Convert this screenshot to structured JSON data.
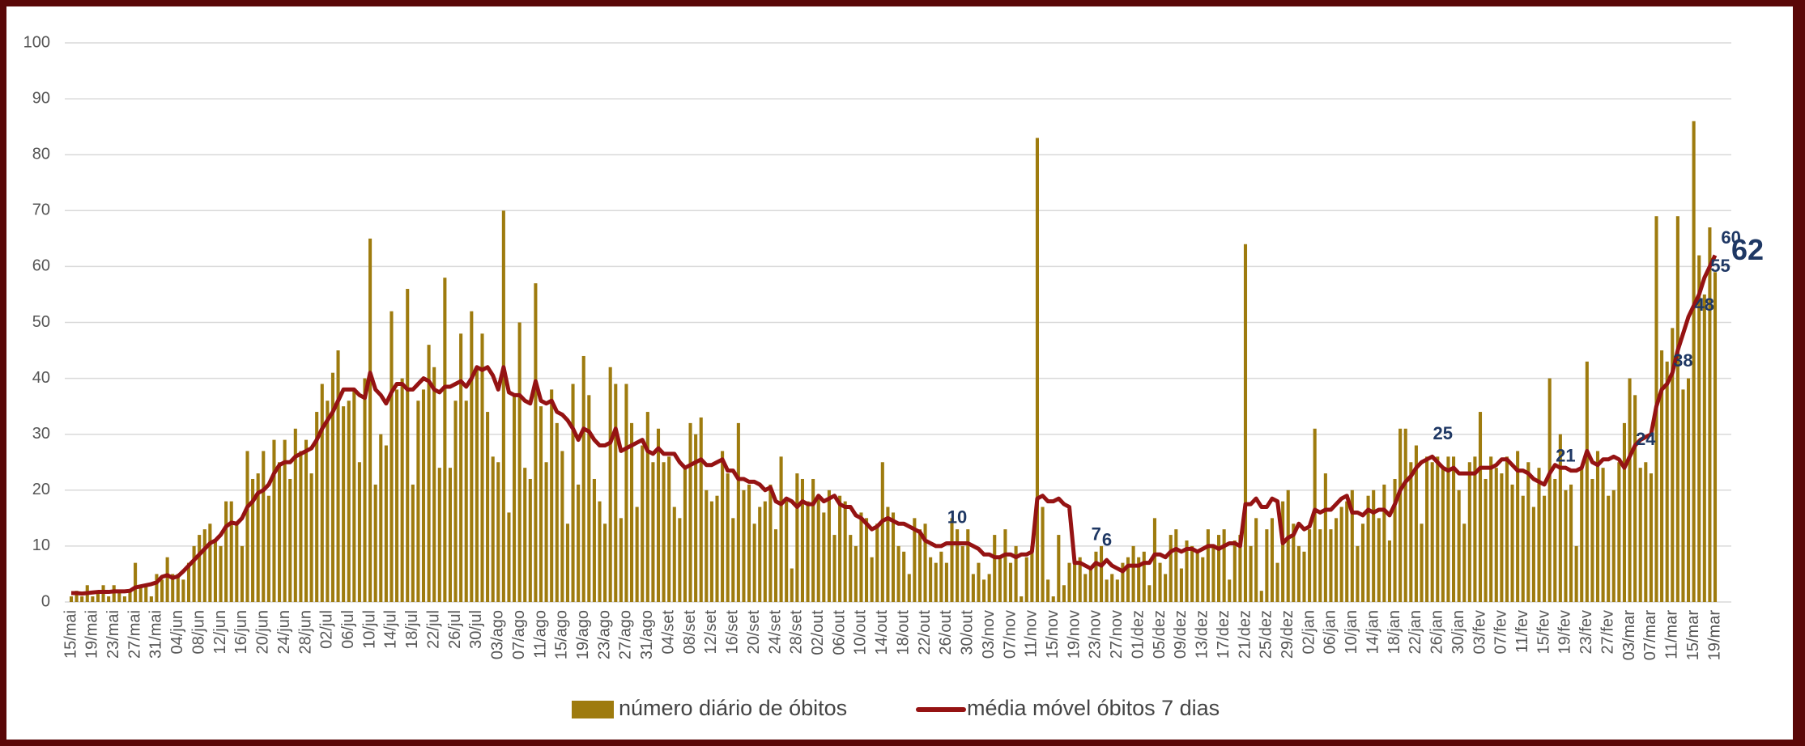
{
  "chart_data": {
    "type": "bar-line",
    "categories": [
      "15/mai",
      null,
      null,
      null,
      "19/mai",
      null,
      null,
      null,
      "23/mai",
      null,
      null,
      null,
      "27/mai",
      null,
      null,
      null,
      "31/mai",
      null,
      null,
      null,
      "04/jun",
      null,
      null,
      null,
      "08/jun",
      null,
      null,
      null,
      "12/jun",
      null,
      null,
      null,
      "16/jun",
      null,
      null,
      null,
      "20/jun",
      null,
      null,
      null,
      "24/jun",
      null,
      null,
      null,
      "28/jun",
      null,
      null,
      null,
      "02/jul",
      null,
      null,
      null,
      "06/jul",
      null,
      null,
      null,
      "10/jul",
      null,
      null,
      null,
      "14/jul",
      null,
      null,
      null,
      "18/jul",
      null,
      null,
      null,
      "22/jul",
      null,
      null,
      null,
      "26/jul",
      null,
      null,
      null,
      "30/jul",
      null,
      null,
      null,
      "03/ago",
      null,
      null,
      null,
      "07/ago",
      null,
      null,
      null,
      "11/ago",
      null,
      null,
      null,
      "15/ago",
      null,
      null,
      null,
      "19/ago",
      null,
      null,
      null,
      "23/ago",
      null,
      null,
      null,
      "27/ago",
      null,
      null,
      null,
      "31/ago",
      null,
      null,
      null,
      "04/set",
      null,
      null,
      null,
      "08/set",
      null,
      null,
      null,
      "12/set",
      null,
      null,
      null,
      "16/set",
      null,
      null,
      null,
      "20/set",
      null,
      null,
      null,
      "24/set",
      null,
      null,
      null,
      "28/set",
      null,
      null,
      null,
      "02/out",
      null,
      null,
      null,
      "06/out",
      null,
      null,
      null,
      "10/out",
      null,
      null,
      null,
      "14/out",
      null,
      null,
      null,
      "18/out",
      null,
      null,
      null,
      "22/out",
      null,
      null,
      null,
      "26/out",
      null,
      null,
      null,
      "30/out",
      null,
      null,
      null,
      "03/nov",
      null,
      null,
      null,
      "07/nov",
      null,
      null,
      null,
      "11/nov",
      null,
      null,
      null,
      "15/nov",
      null,
      null,
      null,
      "19/nov",
      null,
      null,
      null,
      "23/nov",
      null,
      null,
      null,
      "27/nov",
      null,
      null,
      null,
      "01/dez",
      null,
      null,
      null,
      "05/dez",
      null,
      null,
      null,
      "09/dez",
      null,
      null,
      null,
      "13/dez",
      null,
      null,
      null,
      "17/dez",
      null,
      null,
      null,
      "21/dez",
      null,
      null,
      null,
      "25/dez",
      null,
      null,
      null,
      "29/dez",
      null,
      null,
      null,
      "02/jan",
      null,
      null,
      null,
      "06/jan",
      null,
      null,
      null,
      "10/jan",
      null,
      null,
      null,
      "14/jan",
      null,
      null,
      null,
      "18/jan",
      null,
      null,
      null,
      "22/jan",
      null,
      null,
      null,
      "26/jan",
      null,
      null,
      null,
      "30/jan",
      null,
      null,
      null,
      "03/fev",
      null,
      null,
      null,
      "07/fev",
      null,
      null,
      null,
      "11/fev",
      null,
      null,
      null,
      "15/fev",
      null,
      null,
      null,
      "19/fev",
      null,
      null,
      null,
      "23/fev",
      null,
      null,
      null,
      "27/fev",
      null,
      null,
      null,
      "03/mar",
      null,
      null,
      null,
      "07/mar",
      null,
      null,
      null,
      "11/mar",
      null,
      null,
      null,
      "15/mar",
      null,
      null,
      null,
      "19/mar"
    ],
    "series": [
      {
        "name": "número diário de óbitos",
        "type": "bar",
        "color": "#9e7b0e",
        "values": [
          1,
          2,
          1,
          3,
          1,
          2,
          3,
          1,
          3,
          2,
          1,
          2,
          7,
          3,
          3,
          1,
          5,
          4,
          8,
          5,
          5,
          4,
          7,
          10,
          12,
          13,
          14,
          11,
          10,
          18,
          18,
          14,
          10,
          27,
          22,
          23,
          27,
          19,
          29,
          25,
          29,
          22,
          31,
          27,
          29,
          23,
          34,
          39,
          36,
          41,
          45,
          35,
          36,
          38,
          25,
          40,
          65,
          21,
          30,
          28,
          52,
          38,
          40,
          56,
          21,
          36,
          38,
          46,
          42,
          24,
          58,
          24,
          36,
          48,
          36,
          52,
          42,
          48,
          34,
          26,
          25,
          70,
          16,
          37,
          50,
          24,
          22,
          57,
          35,
          25,
          38,
          32,
          27,
          14,
          39,
          21,
          44,
          37,
          22,
          18,
          14,
          42,
          39,
          15,
          39,
          32,
          17,
          28,
          34,
          25,
          31,
          25,
          26,
          17,
          15,
          24,
          32,
          30,
          33,
          20,
          18,
          19,
          27,
          23,
          15,
          32,
          20,
          21,
          14,
          17,
          18,
          21,
          13,
          26,
          18,
          6,
          23,
          22,
          18,
          22,
          19,
          16,
          20,
          12,
          19,
          18,
          12,
          10,
          16,
          15,
          8,
          14,
          25,
          17,
          16,
          10,
          9,
          5,
          15,
          13,
          14,
          8,
          7,
          9,
          7,
          15,
          13,
          10,
          13,
          5,
          7,
          4,
          5,
          12,
          8,
          13,
          7,
          10,
          1,
          8,
          10,
          83,
          17,
          4,
          1,
          12,
          3,
          7,
          7,
          8,
          5,
          6,
          9,
          10,
          4,
          5,
          4,
          7,
          8,
          10,
          8,
          9,
          3,
          15,
          7,
          5,
          12,
          13,
          6,
          11,
          10,
          9,
          8,
          13,
          10,
          12,
          13,
          4,
          11,
          12,
          64,
          10,
          15,
          2,
          13,
          15,
          7,
          18,
          20,
          14,
          10,
          9,
          13,
          31,
          13,
          23,
          13,
          15,
          17,
          18,
          20,
          10,
          14,
          19,
          20,
          15,
          21,
          11,
          22,
          31,
          31,
          25,
          28,
          14,
          26,
          25,
          26,
          24,
          26,
          26,
          20,
          14,
          25,
          26,
          34,
          22,
          26,
          24,
          23,
          26,
          21,
          27,
          19,
          25,
          17,
          24,
          19,
          40,
          22,
          30,
          20,
          21,
          10,
          24,
          43,
          22,
          27,
          24,
          19,
          20,
          25,
          32,
          40,
          37,
          24,
          25,
          23,
          69,
          45,
          43,
          49,
          69,
          38,
          40,
          86,
          62,
          55,
          67,
          59
        ]
      },
      {
        "name": "média móvel óbitos 7 dias",
        "type": "line",
        "color": "#951313",
        "values": [
          1.6,
          1.6,
          1.5,
          1.6,
          1.7,
          1.8,
          1.8,
          1.8,
          1.9,
          1.9,
          1.9,
          2.0,
          2.6,
          2.8,
          3.0,
          3.2,
          3.5,
          4.5,
          4.8,
          4.3,
          4.6,
          5.5,
          6.5,
          7.5,
          8.5,
          9.5,
          10.5,
          11,
          12,
          13.5,
          14.2,
          14,
          15,
          17,
          18,
          19.5,
          20,
          21,
          23,
          24.5,
          25,
          25,
          26,
          26.5,
          27,
          27.5,
          29,
          31,
          32.5,
          34,
          36,
          38,
          38,
          38,
          37,
          36.5,
          41,
          38,
          37,
          35.5,
          37.5,
          39,
          39,
          38,
          38,
          39,
          40,
          39.5,
          38,
          37.5,
          38.5,
          38.5,
          39,
          39.5,
          38.5,
          40,
          42,
          41.5,
          42,
          40.5,
          38,
          42,
          37.5,
          37,
          37,
          36,
          35.5,
          39.5,
          36,
          35.5,
          36,
          34,
          33.5,
          32.5,
          31,
          29,
          31,
          30.5,
          29,
          28,
          28,
          28.5,
          31,
          27,
          27.5,
          28,
          28.5,
          29,
          27,
          26.5,
          27.5,
          26.5,
          26.5,
          26.5,
          25,
          24,
          24.5,
          25,
          25.5,
          24.5,
          24.5,
          25,
          25.5,
          23.5,
          23.5,
          22,
          22,
          21.5,
          21.5,
          21,
          20,
          20.5,
          18,
          17.5,
          18.5,
          18,
          17,
          18,
          17.5,
          17.5,
          19,
          18,
          18.5,
          19,
          17.5,
          17,
          17,
          15.5,
          15,
          14,
          13,
          13.5,
          14.5,
          15,
          14.5,
          14,
          14,
          13.5,
          13,
          12.5,
          11,
          10.5,
          10,
          10,
          10.5,
          10.5,
          10.5,
          10.5,
          10.5,
          10,
          9.5,
          8.5,
          8.5,
          8,
          8,
          8.5,
          8.5,
          8,
          8.5,
          8.5,
          9,
          18.5,
          19,
          18,
          18,
          18.5,
          17.5,
          17,
          7,
          7,
          6.5,
          6,
          7,
          6.5,
          7.5,
          6.5,
          6,
          5.5,
          6.5,
          6.5,
          6.5,
          7,
          7,
          8.5,
          8.5,
          8,
          9,
          9.5,
          9,
          9.5,
          9.5,
          9,
          9.5,
          10,
          10,
          9.5,
          10,
          10.5,
          10.5,
          10,
          17.5,
          17.5,
          18.5,
          17,
          17,
          18.5,
          18,
          10.5,
          11.5,
          12,
          14,
          13,
          13.5,
          16.5,
          16,
          16.5,
          16.5,
          17.5,
          18.5,
          19,
          16,
          16,
          15.5,
          16.5,
          16,
          16.5,
          16.5,
          15.5,
          17.5,
          20,
          21.5,
          22.5,
          24,
          25,
          25.5,
          26,
          25,
          24,
          23.5,
          24,
          23,
          23,
          23,
          23,
          24,
          24,
          24,
          24.5,
          25.5,
          25.5,
          24.5,
          23.5,
          23.5,
          23,
          22,
          21.5,
          21,
          23,
          24.5,
          24,
          24,
          23.5,
          23.5,
          24,
          27,
          25,
          24.5,
          25.5,
          25.5,
          26,
          25.5,
          24,
          26,
          28,
          29,
          29.5,
          30,
          35,
          38,
          39,
          41,
          45,
          48,
          51,
          53,
          55,
          58,
          60,
          62
        ],
        "value_labels": [
          null,
          null,
          null,
          null,
          null,
          null,
          null,
          null,
          null,
          null,
          null,
          null,
          null,
          null,
          null,
          null,
          null,
          null,
          null,
          null,
          null,
          null,
          null,
          null,
          null,
          null,
          null,
          null,
          null,
          null,
          null,
          null,
          null,
          null,
          null,
          null,
          null,
          null,
          null,
          null,
          null,
          null,
          null,
          null,
          null,
          null,
          null,
          null,
          null,
          null,
          null,
          null,
          null,
          null,
          null,
          null,
          null,
          null,
          null,
          null,
          null,
          null,
          null,
          null,
          null,
          null,
          null,
          null,
          null,
          null,
          null,
          null,
          null,
          null,
          null,
          null,
          null,
          null,
          null,
          null,
          null,
          null,
          null,
          null,
          null,
          null,
          null,
          null,
          null,
          null,
          null,
          null,
          null,
          null,
          null,
          null,
          null,
          null,
          null,
          null,
          null,
          null,
          null,
          null,
          null,
          null,
          null,
          null,
          null,
          null,
          null,
          null,
          null,
          null,
          null,
          null,
          null,
          null,
          null,
          null,
          null,
          null,
          null,
          null,
          null,
          null,
          null,
          null,
          null,
          null,
          null,
          null,
          null,
          null,
          null,
          null,
          null,
          null,
          null,
          null,
          null,
          null,
          null,
          null,
          null,
          null,
          null,
          null,
          null,
          null,
          null,
          null,
          null,
          null,
          null,
          null,
          null,
          null,
          null,
          null,
          null,
          null,
          "10",
          null,
          null,
          null,
          null,
          null,
          null,
          null,
          null,
          null,
          null,
          null,
          null,
          null,
          null,
          null,
          null,
          null,
          null,
          null,
          null,
          null,
          null,
          null,
          null,
          null,
          null,
          "7",
          null,
          "6",
          null,
          null,
          null,
          null,
          null,
          null,
          null,
          null,
          null,
          null,
          null,
          null,
          null,
          null,
          null,
          null,
          null,
          null,
          null,
          null,
          null,
          null,
          null,
          null,
          null,
          null,
          null,
          null,
          null,
          null,
          null,
          null,
          null,
          null,
          null,
          null,
          null,
          null,
          null,
          null,
          null,
          null,
          null,
          null,
          null,
          null,
          null,
          null,
          null,
          null,
          null,
          null,
          null,
          null,
          null,
          null,
          null,
          null,
          null,
          null,
          null,
          "25",
          null,
          null,
          null,
          null,
          null,
          null,
          null,
          null,
          null,
          null,
          null,
          null,
          null,
          null,
          null,
          null,
          null,
          null,
          null,
          null,
          null,
          null,
          "21",
          null,
          null,
          null,
          null,
          null,
          null,
          null,
          null,
          null,
          null,
          null,
          null,
          null,
          null,
          "24",
          null,
          null,
          null,
          null,
          null,
          null,
          "38",
          null,
          null,
          null,
          "48",
          null,
          null,
          "55",
          null,
          "60",
          "62"
        ]
      }
    ],
    "ylim": [
      0,
      100
    ],
    "yticks": [
      0,
      10,
      20,
      30,
      40,
      50,
      60,
      70,
      80,
      90,
      100
    ],
    "grid": true,
    "legend": "bottom"
  }
}
